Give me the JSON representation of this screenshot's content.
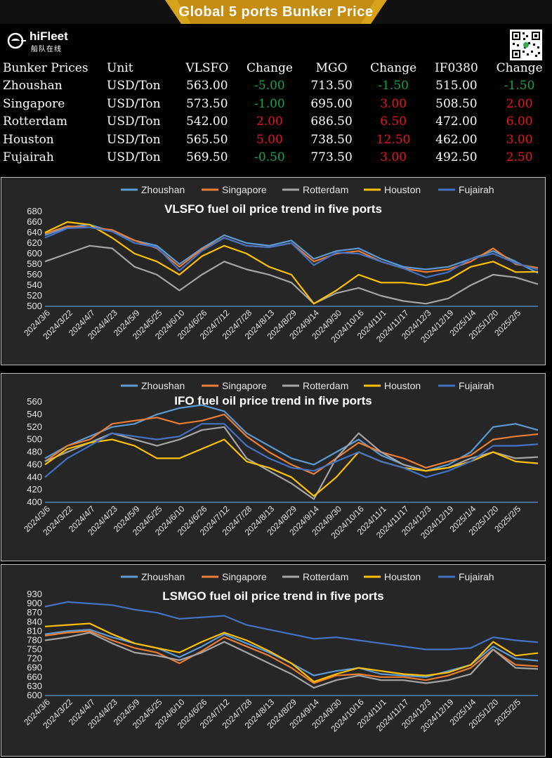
{
  "header": {
    "title": "Global 5 ports  Bunker Price",
    "logo_text": "hiFleet",
    "logo_subtext": "船队在线"
  },
  "colors": {
    "banner": "#d9a21b",
    "positive": "#e8131b",
    "negative": "#16a34a",
    "Zhoushan": "#5b9bd5",
    "Singapore": "#ed7d31",
    "Rotterdam": "#a5a5a5",
    "Houston": "#ffc000",
    "Fujairah": "#4472c4",
    "panel_bg": "#262626"
  },
  "table": {
    "headers": [
      "Bunker Prices",
      "Unit",
      "VLSFO",
      "Change",
      "MGO",
      "Change",
      "IF0380",
      "Change"
    ],
    "rows": [
      {
        "port": "Zhoushan",
        "unit": "USD/Ton",
        "vlsfo": "563.00",
        "vlsfo_change": "-5.00",
        "mgo": "713.50",
        "mgo_change": "-1.50",
        "if0380": "515.00",
        "if0380_change": "-1.50"
      },
      {
        "port": "Singapore",
        "unit": "USD/Ton",
        "vlsfo": "573.50",
        "vlsfo_change": "-1.00",
        "mgo": "695.00",
        "mgo_change": "3.00",
        "if0380": "508.50",
        "if0380_change": "2.00"
      },
      {
        "port": "Rotterdam",
        "unit": "USD/Ton",
        "vlsfo": "542.00",
        "vlsfo_change": "2.00",
        "mgo": "686.50",
        "mgo_change": "6.50",
        "if0380": "472.00",
        "if0380_change": "6.00"
      },
      {
        "port": "Houston",
        "unit": "USD/Ton",
        "vlsfo": "565.50",
        "vlsfo_change": "5.00",
        "mgo": "738.50",
        "mgo_change": "12.50",
        "if0380": "462.00",
        "if0380_change": "3.00"
      },
      {
        "port": "Fujairah",
        "unit": "USD/Ton",
        "vlsfo": "569.50",
        "vlsfo_change": "-0.50",
        "mgo": "773.50",
        "mgo_change": "3.00",
        "if0380": "492.50",
        "if0380_change": "2.50"
      }
    ]
  },
  "chart_data": [
    {
      "type": "line",
      "title": "VLSFO fuel oil price trend in five ports",
      "x": [
        "2024/3/6",
        "2024/3/22",
        "2024/4/7",
        "2024/4/23",
        "2024/5/9",
        "2024/5/25",
        "2024/6/10",
        "2024/6/26",
        "2024/7/12",
        "2024/7/28",
        "2024/8/13",
        "2024/8/29",
        "2024/9/14",
        "2024/9/30",
        "2024/10/16",
        "2024/11/1",
        "2024/11/17",
        "2024/12/3",
        "2024/12/19",
        "2025/1/4",
        "2025/1/20",
        "2025/2/5",
        "2025/2/21"
      ],
      "x_tick_labels": [
        "2024/3/6",
        "2024/3/22",
        "2024/4/7",
        "2024/4/23",
        "2024/5/9",
        "2024/5/25",
        "2024/6/10",
        "2024/6/26",
        "2024/7/12",
        "2024/7/28",
        "2024/8/13",
        "2024/8/29",
        "2024/9/14",
        "2024/9/30",
        "2024/10/16",
        "2024/11/1",
        "2024/11/17",
        "2024/12/3",
        "2024/12/19",
        "2025/1/4",
        "2025/1/20",
        "2025/2/5"
      ],
      "y_ticks": [
        500,
        520,
        540,
        560,
        580,
        600,
        620,
        640,
        660,
        680
      ],
      "ylim": [
        500,
        680
      ],
      "legend_position": "top",
      "grid": false,
      "series": [
        {
          "name": "Zhoushan",
          "values": [
            635,
            650,
            655,
            642,
            625,
            615,
            580,
            610,
            635,
            620,
            615,
            625,
            590,
            605,
            610,
            590,
            575,
            570,
            575,
            590,
            605,
            585,
            563
          ]
        },
        {
          "name": "Singapore",
          "values": [
            638,
            652,
            650,
            645,
            625,
            610,
            575,
            608,
            630,
            615,
            612,
            620,
            585,
            600,
            605,
            585,
            572,
            565,
            570,
            585,
            610,
            580,
            573
          ]
        },
        {
          "name": "Rotterdam",
          "values": [
            585,
            600,
            615,
            610,
            575,
            560,
            530,
            560,
            585,
            570,
            560,
            545,
            505,
            525,
            535,
            520,
            510,
            505,
            515,
            540,
            560,
            555,
            542
          ]
        },
        {
          "name": "Houston",
          "values": [
            640,
            660,
            655,
            630,
            600,
            585,
            560,
            595,
            615,
            600,
            575,
            560,
            505,
            530,
            560,
            545,
            545,
            540,
            550,
            575,
            585,
            565,
            565.5
          ]
        },
        {
          "name": "Fujairah",
          "values": [
            630,
            648,
            650,
            642,
            620,
            612,
            568,
            605,
            630,
            615,
            612,
            620,
            578,
            602,
            600,
            585,
            572,
            555,
            565,
            590,
            600,
            582,
            569.5
          ]
        }
      ]
    },
    {
      "type": "line",
      "title": "IFO fuel oil price trend in five ports",
      "x": [
        "2024/3/6",
        "2024/3/22",
        "2024/4/7",
        "2024/4/23",
        "2024/5/9",
        "2024/5/25",
        "2024/6/10",
        "2024/6/26",
        "2024/7/12",
        "2024/7/28",
        "2024/8/13",
        "2024/8/29",
        "2024/9/14",
        "2024/9/30",
        "2024/10/16",
        "2024/11/1",
        "2024/11/17",
        "2024/12/3",
        "2024/12/19",
        "2025/1/4",
        "2025/1/20",
        "2025/2/5",
        "2025/2/21"
      ],
      "x_tick_labels": [
        "2024/3/6",
        "2024/3/22",
        "2024/4/7",
        "2024/4/23",
        "2024/5/9",
        "2024/5/25",
        "2024/6/10",
        "2024/6/26",
        "2024/7/12",
        "2024/7/28",
        "2024/8/13",
        "2024/8/29",
        "2024/9/14",
        "2024/9/30",
        "2024/10/16",
        "2024/11/1",
        "2024/11/17",
        "2024/12/3",
        "2024/12/19",
        "2025/1/4",
        "2025/1/20",
        "2025/2/5"
      ],
      "y_ticks": [
        400,
        420,
        440,
        460,
        480,
        500,
        520,
        540,
        560
      ],
      "ylim": [
        400,
        560
      ],
      "legend_position": "top",
      "grid": false,
      "series": [
        {
          "name": "Zhoushan",
          "values": [
            470,
            490,
            505,
            520,
            525,
            540,
            550,
            555,
            545,
            510,
            490,
            470,
            460,
            480,
            500,
            475,
            460,
            450,
            460,
            480,
            520,
            525,
            515
          ]
        },
        {
          "name": "Singapore",
          "values": [
            465,
            490,
            500,
            525,
            530,
            535,
            525,
            530,
            540,
            505,
            480,
            460,
            445,
            470,
            495,
            480,
            470,
            455,
            465,
            475,
            500,
            505,
            508.5
          ]
        },
        {
          "name": "Rotterdam",
          "values": [
            465,
            480,
            495,
            510,
            500,
            490,
            500,
            515,
            520,
            470,
            450,
            430,
            405,
            470,
            510,
            480,
            460,
            450,
            455,
            470,
            480,
            470,
            472
          ]
        },
        {
          "name": "Houston",
          "values": [
            460,
            485,
            495,
            500,
            490,
            470,
            470,
            485,
            500,
            465,
            455,
            440,
            410,
            440,
            480,
            465,
            455,
            450,
            455,
            465,
            480,
            465,
            462
          ]
        },
        {
          "name": "Fujairah",
          "values": [
            440,
            470,
            490,
            510,
            505,
            500,
            505,
            525,
            525,
            490,
            470,
            455,
            450,
            465,
            480,
            465,
            455,
            440,
            450,
            465,
            490,
            490,
            492.5
          ]
        }
      ]
    },
    {
      "type": "line",
      "title": "LSMGO fuel oil price trend in five ports",
      "x": [
        "2024/3/6",
        "2024/3/22",
        "2024/4/7",
        "2024/4/23",
        "2024/5/9",
        "2024/5/25",
        "2024/6/10",
        "2024/6/26",
        "2024/7/12",
        "2024/7/28",
        "2024/8/13",
        "2024/8/29",
        "2024/9/14",
        "2024/9/30",
        "2024/10/16",
        "2024/11/1",
        "2024/11/17",
        "2024/12/3",
        "2024/12/19",
        "2025/1/4",
        "2025/1/20",
        "2025/2/5",
        "2025/2/21"
      ],
      "x_tick_labels": [
        "2024/3/6",
        "2024/3/22",
        "2024/4/7",
        "2024/4/23",
        "2024/5/9",
        "2024/5/25",
        "2024/6/10",
        "2024/6/26",
        "2024/7/12",
        "2024/7/28",
        "2024/8/13",
        "2024/8/29",
        "2024/9/14",
        "2024/9/30",
        "2024/10/16",
        "2024/11/1",
        "2024/11/17",
        "2024/12/3",
        "2024/12/19",
        "2025/1/4",
        "2025/1/20",
        "2025/2/5"
      ],
      "y_ticks": [
        600,
        630,
        660,
        690,
        720,
        750,
        780,
        810,
        840,
        870,
        900,
        930
      ],
      "ylim": [
        600,
        930
      ],
      "legend_position": "top",
      "grid": false,
      "series": [
        {
          "name": "Zhoushan",
          "values": [
            800,
            810,
            815,
            790,
            770,
            755,
            725,
            760,
            800,
            770,
            740,
            705,
            665,
            680,
            690,
            670,
            665,
            660,
            680,
            700,
            760,
            720,
            713.5
          ]
        },
        {
          "name": "Singapore",
          "values": [
            795,
            805,
            810,
            780,
            755,
            740,
            705,
            745,
            790,
            760,
            730,
            690,
            640,
            665,
            670,
            660,
            660,
            650,
            665,
            690,
            750,
            700,
            695
          ]
        },
        {
          "name": "Rotterdam",
          "values": [
            780,
            790,
            805,
            770,
            740,
            730,
            715,
            740,
            775,
            740,
            705,
            670,
            625,
            650,
            665,
            650,
            650,
            640,
            650,
            670,
            750,
            690,
            686.5
          ]
        },
        {
          "name": "Houston",
          "values": [
            825,
            830,
            835,
            800,
            770,
            755,
            740,
            775,
            805,
            780,
            745,
            705,
            645,
            670,
            690,
            680,
            670,
            665,
            675,
            700,
            775,
            730,
            738.5
          ]
        },
        {
          "name": "Fujairah",
          "values": [
            890,
            905,
            900,
            895,
            880,
            870,
            850,
            855,
            860,
            830,
            815,
            800,
            785,
            790,
            780,
            770,
            760,
            750,
            750,
            755,
            790,
            780,
            773.5
          ]
        }
      ]
    }
  ]
}
